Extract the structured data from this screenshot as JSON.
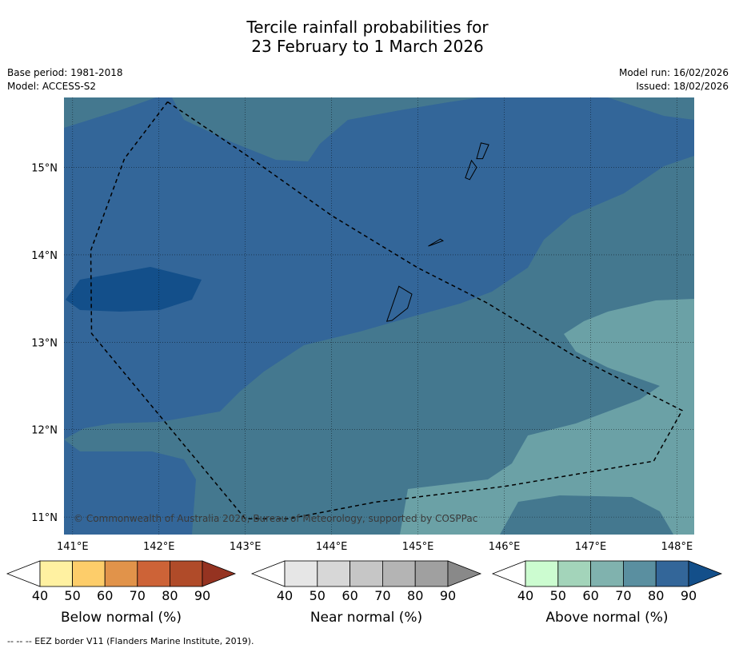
{
  "title": {
    "line1": "Tercile rainfall probabilities for",
    "line2": "23 February to 1 March 2026"
  },
  "meta": {
    "base_period": "Base period: 1981-2018",
    "model": "Model: ACCESS-S2",
    "model_run": "Model run: 16/02/2026",
    "issued": "Issued: 18/02/2026"
  },
  "map": {
    "lon_range": [
      140.9,
      148.2
    ],
    "lat_range": [
      10.8,
      15.8
    ],
    "lon_ticks": [
      {
        "value": 141,
        "label": "141°E"
      },
      {
        "value": 142,
        "label": "142°E"
      },
      {
        "value": 143,
        "label": "143°E"
      },
      {
        "value": 144,
        "label": "144°E"
      },
      {
        "value": 145,
        "label": "145°E"
      },
      {
        "value": 146,
        "label": "146°E"
      },
      {
        "value": 147,
        "label": "147°E"
      },
      {
        "value": 148,
        "label": "148°E"
      }
    ],
    "lat_ticks": [
      {
        "value": 15,
        "label": "15°N"
      },
      {
        "value": 14,
        "label": "14°N"
      },
      {
        "value": 13,
        "label": "13°N"
      },
      {
        "value": 12,
        "label": "12°N"
      },
      {
        "value": 11,
        "label": "11°N"
      }
    ],
    "copyright": "© Commonwealth of Australia 2026, Bureau of Meteorology, supported by COSPPac",
    "eez_border": [
      [
        142.1,
        15.75
      ],
      [
        143.0,
        15.15
      ],
      [
        144.0,
        14.45
      ],
      [
        145.0,
        13.85
      ],
      [
        145.8,
        13.45
      ],
      [
        146.8,
        12.85
      ],
      [
        147.7,
        12.4
      ],
      [
        148.06,
        12.22
      ],
      [
        147.73,
        11.64
      ],
      [
        146.0,
        11.35
      ],
      [
        144.5,
        11.17
      ],
      [
        143.5,
        10.98
      ],
      [
        143.0,
        10.98
      ],
      [
        141.22,
        13.1
      ],
      [
        141.21,
        14.05
      ],
      [
        141.6,
        15.1
      ],
      [
        142.1,
        15.75
      ]
    ],
    "islands": [
      {
        "name": "Guam",
        "points": [
          [
            144.64,
            13.24
          ],
          [
            144.78,
            13.64
          ],
          [
            144.93,
            13.55
          ],
          [
            144.88,
            13.39
          ],
          [
            144.7,
            13.25
          ]
        ]
      },
      {
        "name": "Rota",
        "points": [
          [
            145.12,
            14.1
          ],
          [
            145.26,
            14.18
          ],
          [
            145.29,
            14.16
          ],
          [
            145.15,
            14.11
          ]
        ]
      },
      {
        "name": "Tinian",
        "points": [
          [
            145.55,
            14.88
          ],
          [
            145.62,
            15.08
          ],
          [
            145.68,
            15.0
          ],
          [
            145.6,
            14.86
          ]
        ]
      },
      {
        "name": "Saipan",
        "points": [
          [
            145.68,
            15.1
          ],
          [
            145.73,
            15.28
          ],
          [
            145.82,
            15.26
          ],
          [
            145.75,
            15.1
          ]
        ]
      }
    ]
  },
  "colors": {
    "above_80": "#336699",
    "above_70": "#44788f",
    "above_60": "#6ba1a6",
    "above_90": "#134f8a"
  },
  "colorbars": [
    {
      "title": "Below normal (%)",
      "ticks": [
        "40",
        "50",
        "60",
        "70",
        "80",
        "90"
      ],
      "colors": [
        "#ffffff",
        "#fff1a1",
        "#fdcd6a",
        "#e1934a",
        "#cd6337",
        "#b04b29",
        "#953321"
      ]
    },
    {
      "title": "Near normal (%)",
      "ticks": [
        "40",
        "50",
        "60",
        "70",
        "80",
        "90"
      ],
      "colors": [
        "#ffffff",
        "#e6e6e6",
        "#d7d7d7",
        "#c6c6c6",
        "#b4b4b4",
        "#a0a0a0",
        "#898989"
      ]
    },
    {
      "title": "Above normal (%)",
      "ticks": [
        "40",
        "50",
        "60",
        "70",
        "80",
        "90"
      ],
      "colors": [
        "#ffffff",
        "#ccfcd0",
        "#a3d4ba",
        "#80b2ae",
        "#5a8fa0",
        "#336699",
        "#134f8a"
      ]
    }
  ],
  "footnote": "--  --  -- EEZ border V11 (Flanders Marine Institute, 2019)."
}
